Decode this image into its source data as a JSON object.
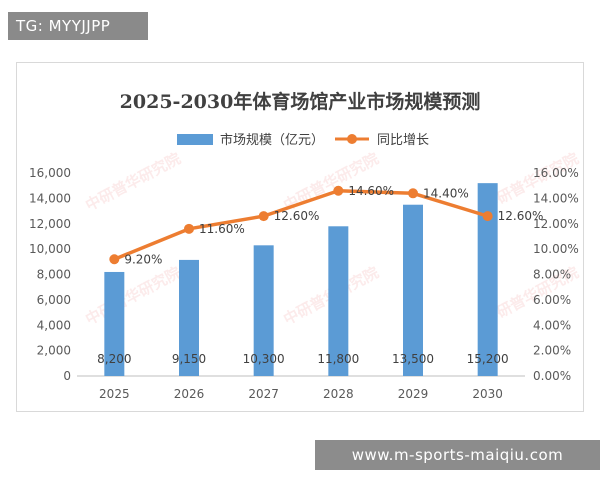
{
  "top_tag": "TG: MYYJJPP",
  "bottom_watermark": "www.m-sports-maiqiu.com",
  "brand_watermark": "中研普华研究院",
  "chart_data": {
    "type": "bar+line",
    "title": "2025-2030年体育场馆产业市场规模预测",
    "categories": [
      "2025",
      "2026",
      "2027",
      "2028",
      "2029",
      "2030"
    ],
    "series": [
      {
        "name": "市场规模（亿元）",
        "kind": "bar",
        "axis": "left",
        "color": "#5b9bd5",
        "values": [
          8200,
          9150,
          10300,
          11800,
          13500,
          15200
        ],
        "labels": [
          "8,200",
          "9,150",
          "10,300",
          "11,800",
          "13,500",
          "15,200"
        ]
      },
      {
        "name": "同比增长",
        "kind": "line",
        "axis": "right",
        "color": "#ed7d31",
        "values": [
          9.2,
          11.6,
          12.6,
          14.6,
          14.4,
          12.6
        ],
        "labels": [
          "9.20%",
          "11.60%",
          "12.60%",
          "14.60%",
          "14.40%",
          "12.60%"
        ]
      }
    ],
    "y_left": {
      "min": 0,
      "max": 16000,
      "ticks": [
        "0",
        "2,000",
        "4,000",
        "6,000",
        "8,000",
        "10,000",
        "12,000",
        "14,000",
        "16,000"
      ]
    },
    "y_right": {
      "min": 0,
      "max": 16,
      "ticks": [
        "0.00%",
        "2.00%",
        "4.00%",
        "6.00%",
        "8.00%",
        "10.00%",
        "12.00%",
        "14.00%",
        "16.00%"
      ]
    },
    "legend_position": "top-center",
    "grid": false
  }
}
